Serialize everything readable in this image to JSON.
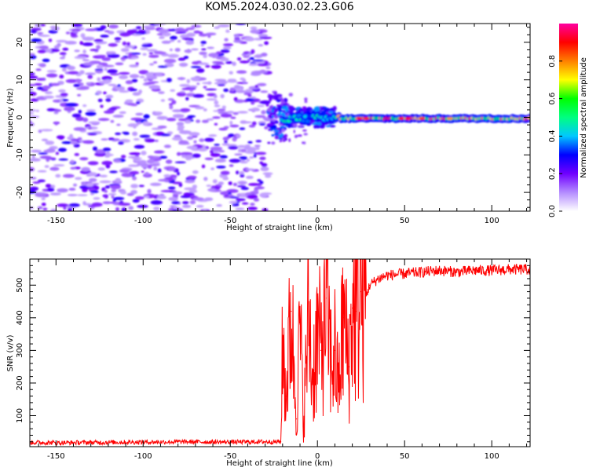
{
  "title": "KOM5.2024.030.02.23.G06",
  "chart_data": [
    {
      "type": "heatmap",
      "xlabel": "Height of straight line (km)",
      "ylabel": "Frequency (Hz)",
      "xlim": [
        -165,
        122
      ],
      "ylim": [
        -25,
        25
      ],
      "xticks": [
        -150,
        -100,
        -50,
        0,
        50,
        100
      ],
      "yticks": [
        -20,
        -10,
        0,
        10,
        20
      ],
      "colorbar": {
        "label": "Normalized spectral amplitude",
        "range": [
          0,
          1
        ],
        "ticks": [
          "0.0",
          "0.2",
          "0.4",
          "0.6",
          "0.8"
        ],
        "colors": [
          "#ffffff",
          "#b48cff",
          "#7000ff",
          "#0000ff",
          "#00c8ff",
          "#00ff80",
          "#00ff00",
          "#ffff00",
          "#ff8000",
          "#ff0000",
          "#ff00a0"
        ]
      },
      "grid": false,
      "features": {
        "noise_region_x": [
          -165,
          -28
        ],
        "transition_region_x": [
          -28,
          10
        ],
        "signal_line_x": [
          10,
          122
        ],
        "signal_line_frequency_hz": -0.3
      }
    },
    {
      "type": "line",
      "xlabel": "Height of straight line (km)",
      "ylabel": "SNR (v/v)",
      "xlim": [
        -165,
        122
      ],
      "ylim": [
        5,
        580
      ],
      "xticks": [
        -150,
        -100,
        -50,
        0,
        50,
        100
      ],
      "yticks": [
        100,
        200,
        300,
        400,
        500
      ],
      "series": [
        {
          "color": "#ff0000",
          "x": [
            -165,
            -150,
            -125,
            -100,
            -75,
            -50,
            -30,
            -21,
            -20,
            -18,
            -15,
            -12,
            -10,
            -8,
            -5,
            -3,
            0,
            2,
            5,
            8,
            10,
            12,
            15,
            18,
            20,
            22,
            25,
            28,
            30,
            35,
            40,
            50,
            60,
            70,
            80,
            90,
            100,
            110,
            122
          ],
          "y": [
            18,
            17,
            18,
            19,
            20,
            19,
            20,
            20,
            330,
            160,
            420,
            90,
            380,
            70,
            430,
            210,
            350,
            300,
            460,
            250,
            300,
            180,
            400,
            250,
            430,
            420,
            480,
            470,
            500,
            520,
            530,
            535,
            540,
            545,
            540,
            545,
            545,
            548,
            548
          ]
        }
      ],
      "grid": false
    }
  ]
}
